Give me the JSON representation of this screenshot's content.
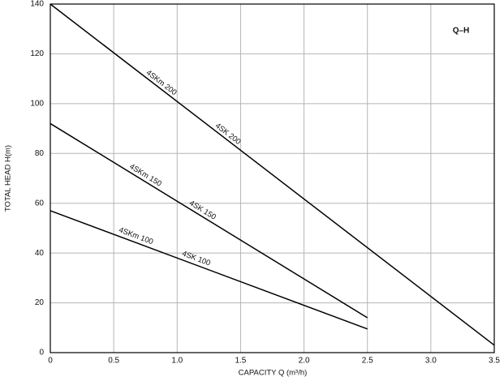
{
  "chart_data": {
    "type": "line",
    "title": "Q–H",
    "xlabel": "CAPACITY  Q (m³/h)",
    "ylabel": "TOTAL HEAD  H(m)",
    "xlim": [
      0,
      3.5
    ],
    "ylim": [
      0,
      140
    ],
    "xticks": [
      0,
      0.5,
      {
        "value": 1,
        "label": "1.0"
      },
      1.5,
      {
        "value": 2,
        "label": "2.0"
      },
      2.5,
      {
        "value": 3,
        "label": "3.0"
      },
      3.5
    ],
    "yticks": [
      0,
      20,
      40,
      60,
      80,
      100,
      120,
      140
    ],
    "grid": true,
    "color": "#000000",
    "series": [
      {
        "labels": [
          "4SKm 200",
          "4SK 200"
        ],
        "x": [
          0,
          3.5
        ],
        "values": [
          140,
          3
        ]
      },
      {
        "labels": [
          "4SKm 150",
          "4SK 150"
        ],
        "x": [
          0,
          2.5
        ],
        "values": [
          92,
          14
        ]
      },
      {
        "labels": [
          "4SKm 100",
          "4SK 100"
        ],
        "x": [
          0,
          2.5
        ],
        "values": [
          57,
          9.5
        ]
      }
    ]
  }
}
